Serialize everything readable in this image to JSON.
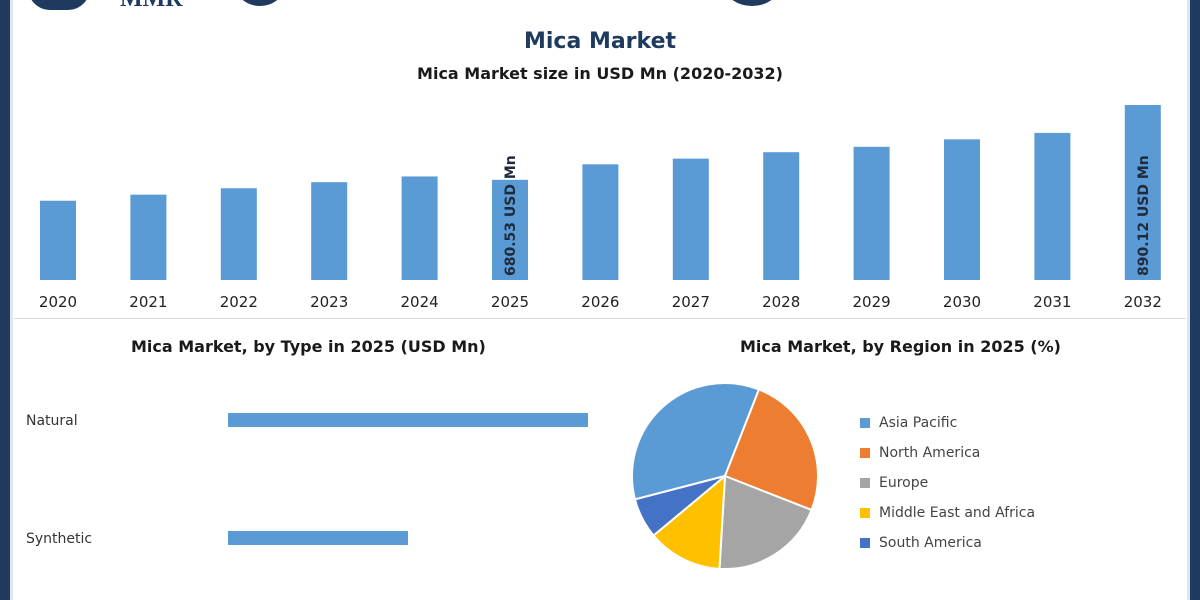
{
  "header": {
    "logo_text": "MMR"
  },
  "title": "Mica Market",
  "subtitle": "Mica Market size in USD Mn (2020-2032)",
  "colors": {
    "bar": "#5b9bd5",
    "brand": "#1f3a5f",
    "axis_text": "#222222"
  },
  "sections": {
    "type_title": "Mica Market, by Type in 2025 (USD Mn)",
    "region_title": "Mica Market, by Region in 2025 (%)"
  },
  "chart_data": [
    {
      "type": "bar",
      "title": "Mica Market size in USD Mn (2020-2032)",
      "categories": [
        "2020",
        "2021",
        "2022",
        "2023",
        "2024",
        "2025",
        "2026",
        "2027",
        "2028",
        "2029",
        "2030",
        "2031",
        "2032"
      ],
      "values": [
        622,
        639,
        657,
        674,
        690,
        680.53,
        724,
        740,
        758,
        773,
        794,
        812,
        890.12
      ],
      "data_labels": [
        {
          "category": "2025",
          "text": "680.53 USD Mn"
        },
        {
          "category": "2032",
          "text": "890.12 USD Mn"
        }
      ],
      "ylim": [
        400,
        890.12
      ],
      "grid": false
    },
    {
      "type": "bar",
      "orientation": "horizontal",
      "title": "Mica Market, by Type in 2025 (USD Mn)",
      "categories": [
        "Natural",
        "Synthetic"
      ],
      "values": [
        450,
        225
      ],
      "xlim": [
        0,
        450
      ]
    },
    {
      "type": "pie",
      "title": "Mica Market, by Region in 2025 (%)",
      "categories": [
        "Asia Pacific",
        "North America",
        "Europe",
        "Middle East and Africa",
        "South America"
      ],
      "values": [
        35,
        25,
        20,
        13,
        7
      ],
      "colors": [
        "#5b9bd5",
        "#ed7d31",
        "#a5a5a5",
        "#ffc000",
        "#4472c4"
      ],
      "legend_position": "right"
    }
  ]
}
